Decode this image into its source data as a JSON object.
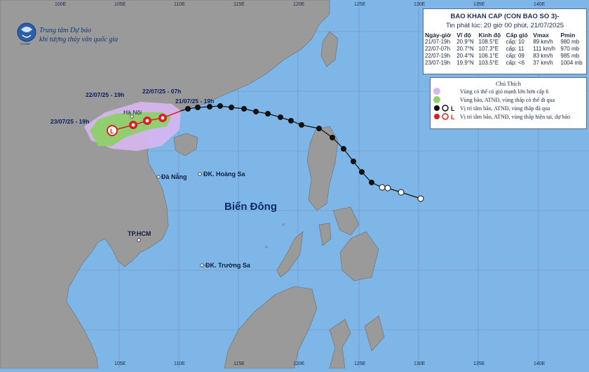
{
  "colors": {
    "sea": "#7fb6e8",
    "land": "#9a9a9a",
    "risk": "#d7b6f0",
    "danger": "#8ed06a",
    "track": "#111111",
    "forecast": "#d92020"
  },
  "grid_labels": {
    "top": [
      "100E",
      "105E",
      "110E",
      "115E",
      "120E",
      "125E",
      "130E",
      "135E",
      "140E"
    ],
    "bottom": [
      "105E",
      "110E",
      "115E",
      "120E",
      "125E",
      "130E",
      "135E",
      "140E"
    ]
  },
  "agency": {
    "line1": "Trung tâm Dự báo",
    "line2": "khí tượng thủy văn quốc gia",
    "logo_caption": "NCHMF"
  },
  "bulletin": {
    "title": "BAO KHAN CAP (CON BAO SO 3)-",
    "subtitle": "Tin phát lúc: 20 giờ 00 phút, 21/07/2025",
    "columns": [
      "Ngày-giờ",
      "Vĩ độ",
      "Kinh độ",
      "Cấp gió",
      "Vmax",
      "Pmin"
    ],
    "rows": [
      [
        "21/07-19h",
        "20.9°N",
        "108.5°E",
        "cấp: 10",
        "89 km/h",
        "980 mb"
      ],
      [
        "22/07-07h",
        "20.7°N",
        "107.3°E",
        "cấp: 11",
        "111 km/h",
        "970 mb"
      ],
      [
        "22/07-19h",
        "20.4°N",
        "106.1°E",
        "cấp: 09",
        "83 km/h",
        "985 mb"
      ],
      [
        "23/07-19h",
        "19.9°N",
        "103.5°E",
        "cấp: <6",
        "37 km/h",
        "1004 mb"
      ]
    ]
  },
  "legend": {
    "title": "Chú Thích",
    "items": [
      {
        "icon": "risk-zone-swatch",
        "text": "Vùng có thể có gió mạnh lớn hơn cấp 6"
      },
      {
        "icon": "danger-zone-swatch",
        "text": "Vùng bão, ATNĐ, vùng thấp có thể đi qua"
      },
      {
        "icon": "past-track-symbols",
        "text": "Vị trí tâm bão, ATNĐ, vùng thấp đã qua"
      },
      {
        "icon": "forecast-symbols",
        "text": "Vị trí tâm bão, ATNĐ, vùng thấp hiện tại, dự báo"
      }
    ]
  },
  "forecast_times": [
    "22/07/25 - 07h",
    "22/07/25 - 19h",
    "21/07/25 - 19h",
    "23/07/25 - 19h"
  ],
  "places": {
    "hanoi": "Hà Nội",
    "danang": "Đà Nẵng",
    "hcm": "TP.HCM",
    "hoangsa": "ĐK. Hoàng Sa",
    "truongsa": "ĐK. Trường Sa"
  },
  "sea_name": "Biển Đông"
}
